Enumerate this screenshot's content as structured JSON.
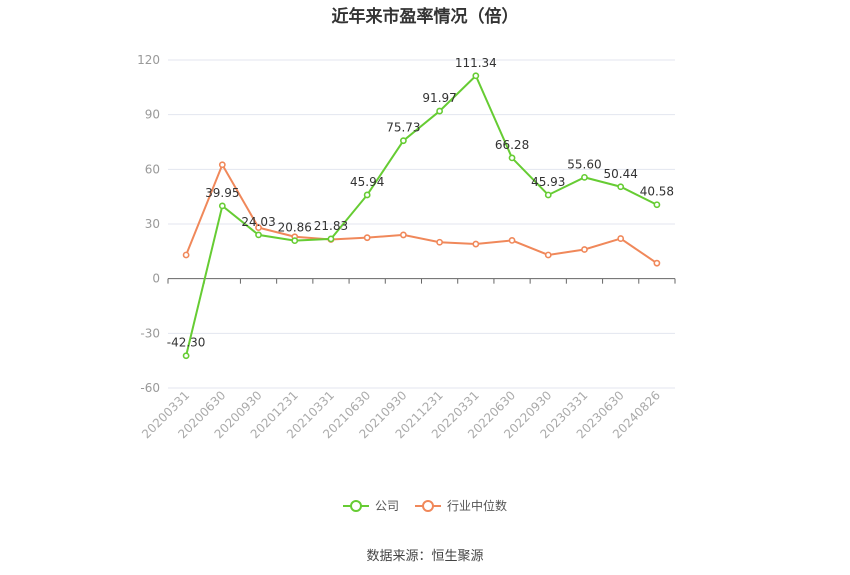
{
  "chart_data": {
    "type": "line",
    "title": "近年来市盈率情况（倍）",
    "categories": [
      "20200331",
      "20200630",
      "20200930",
      "20201231",
      "20210331",
      "20210630",
      "20210930",
      "20211231",
      "20220331",
      "20220630",
      "20220930",
      "20230331",
      "20230630",
      "20240826"
    ],
    "y_ticks": [
      "120",
      "90",
      "60",
      "30",
      "0",
      "-30",
      "-60"
    ],
    "ylim": [
      -60,
      120
    ],
    "grid": true,
    "legend_position": "bottom",
    "series": [
      {
        "name": "公司",
        "color": "#66cc33",
        "values": [
          -42.3,
          39.95,
          24.03,
          20.86,
          21.83,
          45.94,
          75.73,
          91.97,
          111.34,
          66.28,
          45.93,
          55.6,
          50.44,
          40.58
        ],
        "labels": [
          "-42.30",
          "39.95",
          "24.03",
          "20.86",
          "21.83",
          "45.94",
          "75.73",
          "91.97",
          "111.34",
          "66.28",
          "45.93",
          "55.60",
          "50.44",
          "40.58"
        ]
      },
      {
        "name": "行业中位数",
        "color": "#f0885a",
        "values": [
          13.0,
          62.5,
          28.0,
          23.0,
          21.5,
          22.5,
          24.0,
          20.0,
          19.0,
          21.0,
          13.0,
          16.0,
          22.0,
          8.5
        ]
      }
    ],
    "source": "数据来源：恒生聚源"
  }
}
